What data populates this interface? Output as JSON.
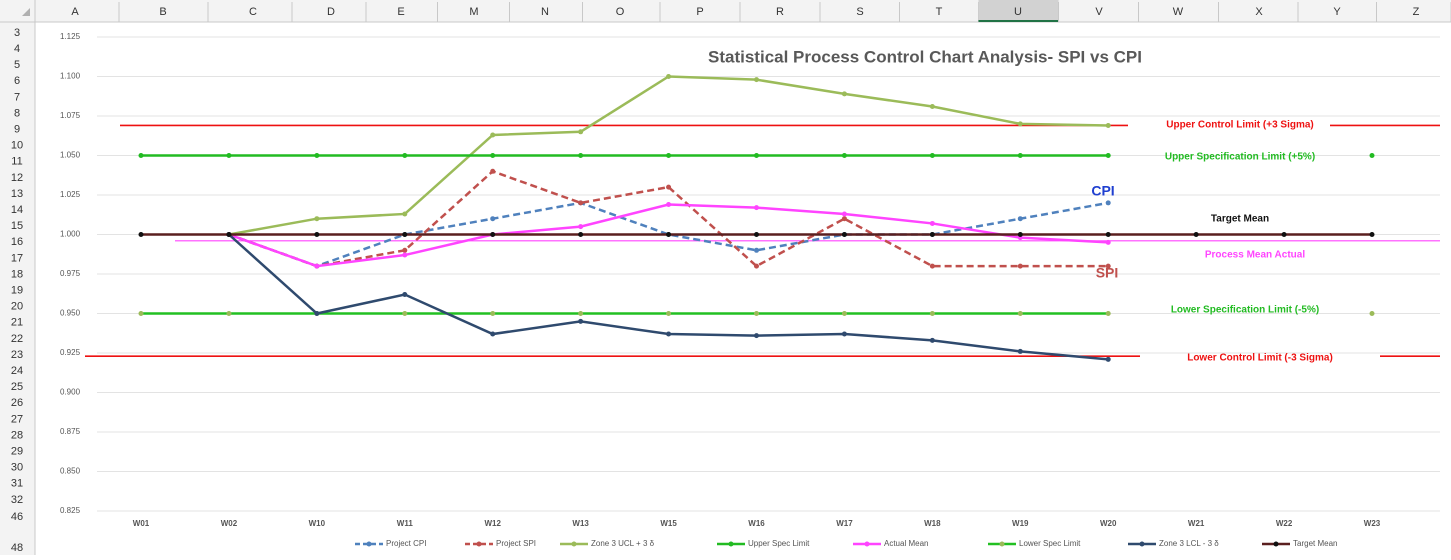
{
  "sheet": {
    "columns": [
      "A",
      "B",
      "C",
      "D",
      "E",
      "M",
      "N",
      "O",
      "P",
      "R",
      "S",
      "T",
      "U",
      "V",
      "W",
      "X",
      "Y",
      "Z"
    ],
    "rows": [
      3,
      4,
      5,
      6,
      7,
      8,
      9,
      10,
      11,
      12,
      13,
      14,
      15,
      16,
      17,
      18,
      19,
      20,
      21,
      22,
      23,
      24,
      25,
      26,
      27,
      28,
      29,
      30,
      31,
      32,
      46,
      48
    ]
  },
  "chart_data": {
    "type": "line",
    "title": "Statistical Process Control Chart  Analysis-  SPI vs CPI",
    "categories": [
      "W01",
      "W02",
      "W10",
      "W11",
      "W12",
      "W13",
      "W15",
      "W16",
      "W17",
      "W18",
      "W19",
      "W20",
      "W21",
      "W22",
      "W23"
    ],
    "ylim": [
      0.825,
      1.125
    ],
    "yticks": [
      0.825,
      {
        "value": 0.85,
        "label": "0.850"
      },
      0.875,
      {
        "value": 0.9,
        "label": "0.900"
      },
      0.925,
      {
        "value": 0.95,
        "label": "0.950"
      },
      0.975,
      {
        "value": 1.0,
        "label": "1.000"
      },
      1.025,
      {
        "value": 1.05,
        "label": "1.050"
      },
      1.075,
      {
        "value": 1.1,
        "label": "1.100"
      },
      1.125
    ],
    "grid": true,
    "series": [
      {
        "name": "Project CPI",
        "color": "#4f81bd",
        "dash": true,
        "values": [
          null,
          1.0,
          0.98,
          1.0,
          1.01,
          1.02,
          1.0,
          0.99,
          1.0,
          1.0,
          1.01,
          1.02,
          null,
          null,
          null
        ]
      },
      {
        "name": "Project SPI",
        "color": "#c0504d",
        "dash": true,
        "values": [
          null,
          1.0,
          0.98,
          0.99,
          1.04,
          1.02,
          1.03,
          0.98,
          1.01,
          0.98,
          0.98,
          0.98,
          null,
          null,
          null
        ]
      },
      {
        "name": "Zone 3 UCL + 3 δ",
        "color": "#9bbb59",
        "values": [
          null,
          1.0,
          1.01,
          1.013,
          1.063,
          1.065,
          1.1,
          1.098,
          1.089,
          1.081,
          1.07,
          1.069,
          null,
          null,
          null
        ]
      },
      {
        "name": "Upper Spec Limit",
        "color": "#22bb22",
        "values": [
          1.05,
          1.05,
          1.05,
          1.05,
          1.05,
          1.05,
          1.05,
          1.05,
          1.05,
          1.05,
          1.05,
          1.05,
          null,
          null,
          1.05
        ]
      },
      {
        "name": "Actual  Mean",
        "color": "#ff44ff",
        "values": [
          null,
          1.0,
          0.98,
          0.987,
          1.0,
          1.005,
          1.019,
          1.017,
          1.013,
          1.007,
          0.998,
          0.995,
          null,
          null,
          null
        ]
      },
      {
        "name": "Lower Spec Limit",
        "color": "#22c022",
        "marker": "#9bbb59",
        "values": [
          0.95,
          0.95,
          0.95,
          0.95,
          0.95,
          0.95,
          0.95,
          0.95,
          0.95,
          0.95,
          0.95,
          0.95,
          null,
          null,
          0.95
        ]
      },
      {
        "name": "Zone 3 LCL - 3 δ",
        "color": "#2f4a6e",
        "values": [
          null,
          1.0,
          0.95,
          0.962,
          0.937,
          0.945,
          0.937,
          0.936,
          0.937,
          0.933,
          0.926,
          0.921,
          null,
          null,
          null
        ]
      },
      {
        "name": "Target Mean",
        "color": "#5a1f1f",
        "marker": "#111111",
        "values": [
          1.0,
          1.0,
          1.0,
          1.0,
          1.0,
          1.0,
          1.0,
          1.0,
          1.0,
          1.0,
          1.0,
          1.0,
          1.0,
          1.0,
          1.0
        ]
      }
    ],
    "reference_lines": [
      {
        "value": 1.069,
        "color": "#ee1111"
      },
      {
        "value": 0.996,
        "color": "#ff44ff"
      },
      {
        "value": 0.923,
        "color": "#ee1111"
      }
    ],
    "annotations": [
      {
        "text": "Upper Control Limit (+3 Sigma)",
        "color": "#ee1111"
      },
      {
        "text": "Upper Specification Limit (+5%)",
        "color": "#22bb22"
      },
      {
        "text": "Target Mean",
        "color": "#111111"
      },
      {
        "text": "Process Mean Actual",
        "color": "#ff44ff"
      },
      {
        "text": "Lower Specification Limit (-5%)",
        "color": "#22bb22"
      },
      {
        "text": "Lower Control Limit (-3 Sigma)",
        "color": "#ee1111"
      },
      {
        "text": "CPI",
        "color": "#1f3fd0"
      },
      {
        "text": "SPI",
        "color": "#c0504d"
      }
    ]
  }
}
